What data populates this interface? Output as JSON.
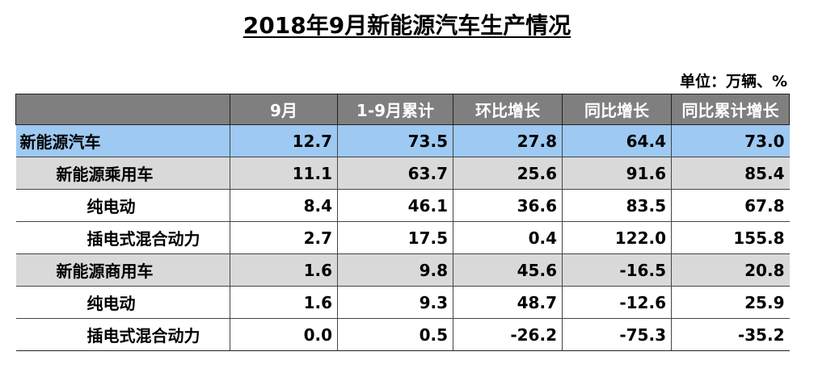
{
  "title": "2018年9月新能源汽车生产情况",
  "unit": "单位：万辆、%",
  "table": {
    "headers": [
      "",
      "9月",
      "1-9月累计",
      "环比增长",
      "同比增长",
      "同比累计增长"
    ],
    "rows": [
      {
        "name": "新能源汽车",
        "level": 0,
        "values": [
          "12.7",
          "73.5",
          "27.8",
          "64.4",
          "73.0"
        ]
      },
      {
        "name": "新能源乘用车",
        "level": 1,
        "values": [
          "11.1",
          "63.7",
          "25.6",
          "91.6",
          "85.4"
        ]
      },
      {
        "name": "纯电动",
        "level": 2,
        "values": [
          "8.4",
          "46.1",
          "36.6",
          "83.5",
          "67.8"
        ]
      },
      {
        "name": "插电式混合动力",
        "level": 2,
        "values": [
          "2.7",
          "17.5",
          "0.4",
          "122.0",
          "155.8"
        ]
      },
      {
        "name": "新能源商用车",
        "level": 1,
        "values": [
          "1.6",
          "9.8",
          "45.6",
          "-16.5",
          "20.8"
        ]
      },
      {
        "name": "纯电动",
        "level": 2,
        "values": [
          "1.6",
          "9.3",
          "48.7",
          "-12.6",
          "25.9"
        ]
      },
      {
        "name": "插电式混合动力",
        "level": 2,
        "values": [
          "0.0",
          "0.5",
          "-26.2",
          "-75.3",
          "-35.2"
        ]
      }
    ]
  },
  "colors": {
    "header_bg": "#7f7f7f",
    "total_row_bg": "#9dc9f2",
    "category_row_bg": "#d9d9d9"
  }
}
